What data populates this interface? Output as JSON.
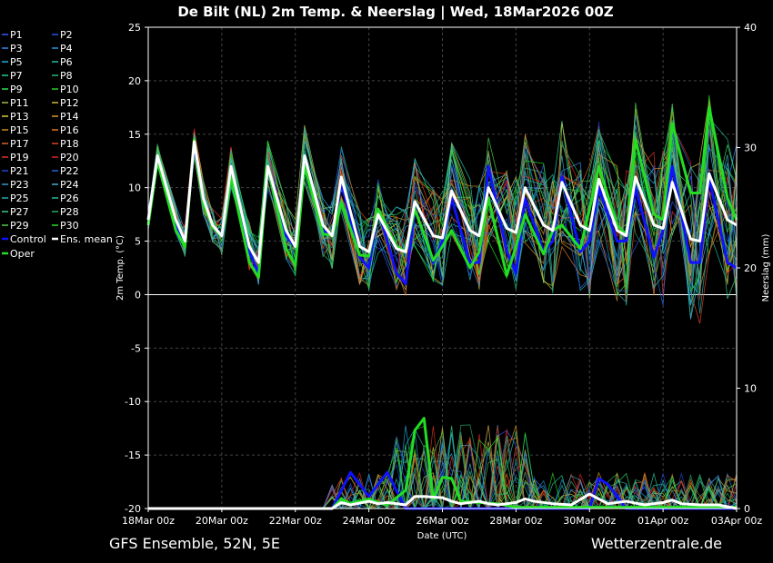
{
  "chart_data": {
    "type": "line",
    "title": "De Bilt  (NL)  2m Temp. & Neerslag | Wed, 18Mar2026 00Z",
    "xlabel": "Date (UTC)",
    "ylabel_left": "2m Temp. (°C)",
    "ylabel_right": "Neerslag (mm)",
    "x_ticks": [
      "18Mar 00z",
      "20Mar 00z",
      "22Mar 00z",
      "24Mar 00z",
      "26Mar 00z",
      "28Mar 00z",
      "30Mar 00z",
      "01Apr 00z",
      "03Apr 00z"
    ],
    "x_range_days": [
      0,
      16
    ],
    "y_left_ticks": [
      25,
      20,
      15,
      10,
      5,
      0,
      -5,
      -10,
      -15,
      -20
    ],
    "ylim_left": [
      -20,
      25
    ],
    "y_right_ticks": [
      40,
      30,
      20,
      10,
      0
    ],
    "ylim_right": [
      0,
      40
    ],
    "grid": true,
    "legend_position": "left",
    "footer_left": "GFS Ensemble, 52N, 5E",
    "footer_right": "Wetterzentrale.de",
    "legend": [
      {
        "name": "P1",
        "color": "#3355ff"
      },
      {
        "name": "P2",
        "color": "#2255ee"
      },
      {
        "name": "P3",
        "color": "#3388ee"
      },
      {
        "name": "P4",
        "color": "#2299dd"
      },
      {
        "name": "P5",
        "color": "#22aadd"
      },
      {
        "name": "P6",
        "color": "#22bbaa"
      },
      {
        "name": "P7",
        "color": "#22cc99"
      },
      {
        "name": "P8",
        "color": "#22bb77"
      },
      {
        "name": "P9",
        "color": "#33dd55"
      },
      {
        "name": "P10",
        "color": "#22cc22"
      },
      {
        "name": "P11",
        "color": "#aabb44"
      },
      {
        "name": "P12",
        "color": "#ccbb33"
      },
      {
        "name": "P13",
        "color": "#ddcc33"
      },
      {
        "name": "P14",
        "color": "#dd9922"
      },
      {
        "name": "P15",
        "color": "#cc8822"
      },
      {
        "name": "P16",
        "color": "#dd7722"
      },
      {
        "name": "P17",
        "color": "#dd6622"
      },
      {
        "name": "P18",
        "color": "#dd4422"
      },
      {
        "name": "P19",
        "color": "#dd3322"
      },
      {
        "name": "P20",
        "color": "#dd2222"
      },
      {
        "name": "P21",
        "color": "#2244cc"
      },
      {
        "name": "P22",
        "color": "#2266dd"
      },
      {
        "name": "P23",
        "color": "#3399cc"
      },
      {
        "name": "P24",
        "color": "#44aacc"
      },
      {
        "name": "P25",
        "color": "#22aaaa"
      },
      {
        "name": "P26",
        "color": "#22bb99"
      },
      {
        "name": "P27",
        "color": "#33cc88"
      },
      {
        "name": "P28",
        "color": "#22aa66"
      },
      {
        "name": "P29",
        "color": "#44cc44"
      },
      {
        "name": "P30",
        "color": "#22dd22"
      },
      {
        "name": "Control",
        "color": "#1111ff"
      },
      {
        "name": "Ens. mean",
        "color": "#ffffff"
      },
      {
        "name": "Oper",
        "color": "#22dd22"
      }
    ],
    "series": [
      {
        "name": "Ens. mean",
        "color": "#ffffff",
        "temp": [
          [
            0,
            7
          ],
          [
            0.25,
            13
          ],
          [
            0.75,
            7
          ],
          [
            1,
            5
          ],
          [
            1.25,
            14.3
          ],
          [
            1.5,
            9
          ],
          [
            1.75,
            6.5
          ],
          [
            2,
            5.5
          ],
          [
            2.25,
            12
          ],
          [
            2.75,
            4.5
          ],
          [
            3,
            3
          ],
          [
            3.25,
            12
          ],
          [
            3.75,
            6
          ],
          [
            4,
            4.5
          ],
          [
            4.25,
            13
          ],
          [
            4.75,
            6.5
          ],
          [
            5,
            5.5
          ],
          [
            5.25,
            11
          ],
          [
            5.75,
            4.5
          ],
          [
            6,
            4
          ],
          [
            6.25,
            7.5
          ],
          [
            6.75,
            4.3
          ],
          [
            7,
            4
          ],
          [
            7.25,
            8.7
          ],
          [
            7.75,
            5.5
          ],
          [
            8,
            5.3
          ],
          [
            8.25,
            9.7
          ],
          [
            8.75,
            6
          ],
          [
            9,
            5.5
          ],
          [
            9.25,
            10
          ],
          [
            9.75,
            6.2
          ],
          [
            10,
            5.8
          ],
          [
            10.25,
            10
          ],
          [
            10.75,
            6.5
          ],
          [
            11,
            6
          ],
          [
            11.25,
            10.5
          ],
          [
            11.75,
            6.5
          ],
          [
            12,
            6
          ],
          [
            12.25,
            10.8
          ],
          [
            12.75,
            6
          ],
          [
            13,
            5.5
          ],
          [
            13.25,
            11
          ],
          [
            13.75,
            6.5
          ],
          [
            14,
            6.2
          ],
          [
            14.25,
            10.5
          ],
          [
            14.75,
            5.2
          ],
          [
            15,
            5
          ],
          [
            15.25,
            11.3
          ],
          [
            15.75,
            7
          ],
          [
            16,
            6.5
          ]
        ],
        "precip": [
          [
            0,
            0
          ],
          [
            5,
            0
          ],
          [
            5.25,
            0.5
          ],
          [
            5.5,
            0.3
          ],
          [
            6,
            0.6
          ],
          [
            6.25,
            0.4
          ],
          [
            6.5,
            0.5
          ],
          [
            7,
            0.3
          ],
          [
            7.25,
            1
          ],
          [
            7.5,
            1
          ],
          [
            8,
            0.9
          ],
          [
            8.25,
            0.6
          ],
          [
            8.5,
            0.4
          ],
          [
            9,
            0.6
          ],
          [
            9.25,
            0.4
          ],
          [
            9.5,
            0.3
          ],
          [
            10,
            0.5
          ],
          [
            10.25,
            0.8
          ],
          [
            10.5,
            0.6
          ],
          [
            11,
            0.4
          ],
          [
            11.5,
            0.3
          ],
          [
            12,
            1.2
          ],
          [
            12.25,
            0.8
          ],
          [
            12.5,
            0.4
          ],
          [
            13,
            0.6
          ],
          [
            13.5,
            0.3
          ],
          [
            14,
            0.5
          ],
          [
            14.25,
            0.7
          ],
          [
            14.5,
            0.4
          ],
          [
            15,
            0.3
          ],
          [
            15.5,
            0.3
          ],
          [
            16,
            0
          ]
        ]
      },
      {
        "name": "Oper",
        "color": "#22dd22",
        "temp": [
          [
            0,
            6.5
          ],
          [
            0.25,
            12.5
          ],
          [
            0.75,
            6
          ],
          [
            1,
            4.5
          ],
          [
            1.25,
            14.5
          ],
          [
            1.5,
            8.5
          ],
          [
            1.75,
            6.3
          ],
          [
            2,
            5.5
          ],
          [
            2.25,
            11
          ],
          [
            2.75,
            3
          ],
          [
            3,
            1.6
          ],
          [
            3.25,
            12
          ],
          [
            3.75,
            4.3
          ],
          [
            4,
            2.7
          ],
          [
            4.25,
            12
          ],
          [
            4.75,
            5.7
          ],
          [
            5,
            5.5
          ],
          [
            5.25,
            8.6
          ],
          [
            5.75,
            3.7
          ],
          [
            6,
            3.6
          ],
          [
            6.25,
            8
          ],
          [
            6.75,
            4.5
          ],
          [
            7,
            4
          ],
          [
            7.25,
            8
          ],
          [
            7.75,
            3.2
          ],
          [
            8,
            4.5
          ],
          [
            8.25,
            6
          ],
          [
            8.75,
            2.5
          ],
          [
            9,
            4
          ],
          [
            9.25,
            9
          ],
          [
            9.75,
            1.8
          ],
          [
            10,
            4.5
          ],
          [
            10.25,
            7.5
          ],
          [
            10.75,
            3.8
          ],
          [
            11,
            6
          ],
          [
            11.25,
            6.5
          ],
          [
            11.75,
            4.3
          ],
          [
            12,
            8
          ],
          [
            12.25,
            12
          ],
          [
            12.75,
            6.5
          ],
          [
            13,
            5.6
          ],
          [
            13.25,
            14.5
          ],
          [
            13.75,
            7.5
          ],
          [
            14,
            7
          ],
          [
            14.25,
            16
          ],
          [
            14.75,
            9.5
          ],
          [
            15,
            9.5
          ],
          [
            15.25,
            17.5
          ],
          [
            15.75,
            9
          ],
          [
            16,
            7
          ]
        ],
        "precip": [
          [
            0,
            0
          ],
          [
            5,
            0
          ],
          [
            5.25,
            0.8
          ],
          [
            5.5,
            0.4
          ],
          [
            6,
            0.8
          ],
          [
            6.25,
            0.5
          ],
          [
            6.5,
            0.3
          ],
          [
            7,
            1.5
          ],
          [
            7.25,
            6.5
          ],
          [
            7.5,
            7.5
          ],
          [
            7.75,
            0.8
          ],
          [
            8,
            2.6
          ],
          [
            8.25,
            2.5
          ],
          [
            8.5,
            0.6
          ],
          [
            9,
            0.5
          ],
          [
            9.5,
            0.4
          ],
          [
            10,
            0.1
          ],
          [
            16,
            0.1
          ]
        ]
      },
      {
        "name": "Control",
        "color": "#1111ff",
        "temp": [
          [
            0,
            7
          ],
          [
            0.25,
            13
          ],
          [
            0.75,
            6.5
          ],
          [
            1,
            5
          ],
          [
            1.25,
            14
          ],
          [
            1.5,
            9
          ],
          [
            1.75,
            6.5
          ],
          [
            2,
            5.5
          ],
          [
            2.25,
            12
          ],
          [
            2.75,
            4
          ],
          [
            3,
            2
          ],
          [
            3.25,
            12
          ],
          [
            3.75,
            5.5
          ],
          [
            4,
            4.5
          ],
          [
            4.25,
            13
          ],
          [
            4.75,
            6
          ],
          [
            5,
            5.5
          ],
          [
            5.25,
            10.5
          ],
          [
            5.75,
            3.5
          ],
          [
            6,
            2.5
          ],
          [
            6.25,
            8
          ],
          [
            6.75,
            2
          ],
          [
            7,
            1
          ],
          [
            7.25,
            8
          ],
          [
            7.75,
            3
          ],
          [
            8,
            5
          ],
          [
            8.25,
            9
          ],
          [
            8.75,
            3
          ],
          [
            9,
            3
          ],
          [
            9.25,
            12
          ],
          [
            9.75,
            4
          ],
          [
            10,
            2
          ],
          [
            10.25,
            9
          ],
          [
            10.75,
            4
          ],
          [
            11,
            5
          ],
          [
            11.25,
            11
          ],
          [
            11.75,
            4
          ],
          [
            12,
            5
          ],
          [
            12.25,
            10
          ],
          [
            12.75,
            5
          ],
          [
            13,
            5
          ],
          [
            13.25,
            10
          ],
          [
            13.75,
            3.5
          ],
          [
            14,
            6
          ],
          [
            14.25,
            12
          ],
          [
            14.75,
            3
          ],
          [
            15,
            3
          ],
          [
            15.25,
            11
          ],
          [
            15.75,
            3
          ],
          [
            16,
            2.5
          ]
        ],
        "precip": [
          [
            0,
            0
          ],
          [
            5,
            0
          ],
          [
            5.5,
            3
          ],
          [
            6,
            1
          ],
          [
            6.5,
            3
          ],
          [
            7,
            0
          ],
          [
            12,
            0
          ],
          [
            12.25,
            2.5
          ],
          [
            12.5,
            2
          ],
          [
            13,
            0
          ],
          [
            16,
            0
          ]
        ]
      }
    ]
  }
}
